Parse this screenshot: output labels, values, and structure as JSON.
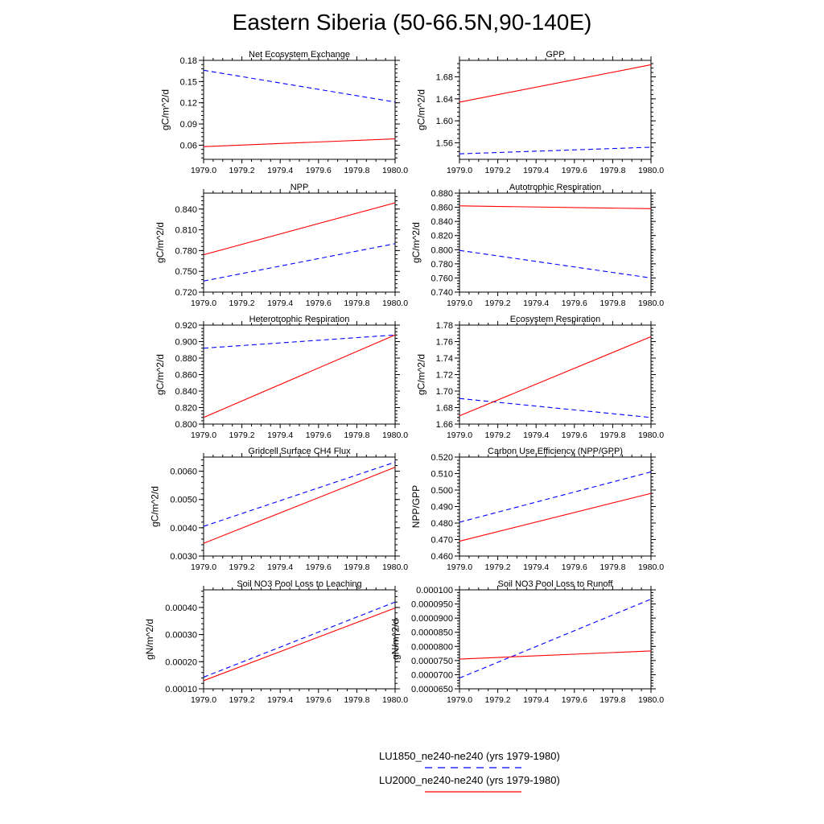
{
  "title": "Eastern Siberia (50-66.5N,90-140E)",
  "legend": [
    {
      "label": "LU1850_ne240-ne240 (yrs 1979-1980)",
      "color": "#0000ff",
      "dash": "dashed"
    },
    {
      "label": "LU2000_ne240-ne240 (yrs 1979-1980)",
      "color": "#ff0000",
      "dash": "solid"
    }
  ],
  "chart_data": [
    {
      "type": "line",
      "title": "Net Ecosystem Exchange",
      "ylabel": "gC/m^2/d",
      "xlim": [
        1979.0,
        1980.0
      ],
      "ylim": [
        0.04,
        0.18
      ],
      "xticks": [
        "1979.0",
        "1979.2",
        "1979.4",
        "1979.6",
        "1979.8",
        "1980.0"
      ],
      "yticks": [
        "0.06",
        "0.09",
        "0.12",
        "0.15",
        "0.18"
      ],
      "series": [
        {
          "x": [
            1979.0,
            1980.0
          ],
          "values": [
            0.166,
            0.121
          ]
        },
        {
          "x": [
            1979.0,
            1980.0
          ],
          "values": [
            0.058,
            0.069
          ]
        }
      ]
    },
    {
      "type": "line",
      "title": "GPP",
      "ylabel": "gC/m^2/d",
      "xlim": [
        1979.0,
        1980.0
      ],
      "ylim": [
        1.53,
        1.71
      ],
      "xticks": [
        "1979.0",
        "1979.2",
        "1979.4",
        "1979.6",
        "1979.8",
        "1980.0"
      ],
      "yticks": [
        "1.56",
        "1.60",
        "1.64",
        "1.68"
      ],
      "series": [
        {
          "x": [
            1979.0,
            1980.0
          ],
          "values": [
            1.54,
            1.552
          ]
        },
        {
          "x": [
            1979.0,
            1980.0
          ],
          "values": [
            1.634,
            1.702
          ]
        }
      ]
    },
    {
      "type": "line",
      "title": "NPP",
      "ylabel": "gC/m^2/d",
      "xlim": [
        1979.0,
        1980.0
      ],
      "ylim": [
        0.72,
        0.863
      ],
      "xticks": [
        "1979.0",
        "1979.2",
        "1979.4",
        "1979.6",
        "1979.8",
        "1980.0"
      ],
      "yticks": [
        "0.720",
        "0.750",
        "0.780",
        "0.810",
        "0.840"
      ],
      "series": [
        {
          "x": [
            1979.0,
            1980.0
          ],
          "values": [
            0.736,
            0.79
          ]
        },
        {
          "x": [
            1979.0,
            1980.0
          ],
          "values": [
            0.774,
            0.849
          ]
        }
      ]
    },
    {
      "type": "line",
      "title": "Autotrophic Respiration",
      "ylabel": "gC/m^2/d",
      "xlim": [
        1979.0,
        1980.0
      ],
      "ylim": [
        0.74,
        0.88
      ],
      "xticks": [
        "1979.0",
        "1979.2",
        "1979.4",
        "1979.6",
        "1979.8",
        "1980.0"
      ],
      "yticks": [
        "0.740",
        "0.760",
        "0.780",
        "0.800",
        "0.820",
        "0.840",
        "0.860",
        "0.880"
      ],
      "series": [
        {
          "x": [
            1979.0,
            1980.0
          ],
          "values": [
            0.799,
            0.76
          ]
        },
        {
          "x": [
            1979.0,
            1980.0
          ],
          "values": [
            0.862,
            0.858
          ]
        }
      ]
    },
    {
      "type": "line",
      "title": "Heterotrophic Respiration",
      "ylabel": "gC/m^2/d",
      "xlim": [
        1979.0,
        1980.0
      ],
      "ylim": [
        0.8,
        0.92
      ],
      "xticks": [
        "1979.0",
        "1979.2",
        "1979.4",
        "1979.6",
        "1979.8",
        "1980.0"
      ],
      "yticks": [
        "0.800",
        "0.820",
        "0.840",
        "0.860",
        "0.880",
        "0.900",
        "0.920"
      ],
      "series": [
        {
          "x": [
            1979.0,
            1980.0
          ],
          "values": [
            0.892,
            0.908
          ]
        },
        {
          "x": [
            1979.0,
            1980.0
          ],
          "values": [
            0.808,
            0.908
          ]
        }
      ]
    },
    {
      "type": "line",
      "title": "Ecosystem Respiration",
      "ylabel": "gC/m^2/d",
      "xlim": [
        1979.0,
        1980.0
      ],
      "ylim": [
        1.66,
        1.78
      ],
      "xticks": [
        "1979.0",
        "1979.2",
        "1979.4",
        "1979.6",
        "1979.8",
        "1980.0"
      ],
      "yticks": [
        "1.66",
        "1.68",
        "1.70",
        "1.72",
        "1.74",
        "1.76",
        "1.78"
      ],
      "series": [
        {
          "x": [
            1979.0,
            1980.0
          ],
          "values": [
            1.691,
            1.668
          ]
        },
        {
          "x": [
            1979.0,
            1980.0
          ],
          "values": [
            1.67,
            1.766
          ]
        }
      ]
    },
    {
      "type": "line",
      "title": "Gridcell Surface CH4 Flux",
      "ylabel": "gC/m^2/d",
      "xlim": [
        1979.0,
        1980.0
      ],
      "ylim": [
        0.003,
        0.0065
      ],
      "xticks": [
        "1979.0",
        "1979.2",
        "1979.4",
        "1979.6",
        "1979.8",
        "1980.0"
      ],
      "yticks": [
        "0.0030",
        "0.0040",
        "0.0050",
        "0.0060"
      ],
      "series": [
        {
          "x": [
            1979.0,
            1980.0
          ],
          "values": [
            0.00405,
            0.00632
          ]
        },
        {
          "x": [
            1979.0,
            1980.0
          ],
          "values": [
            0.00345,
            0.00614
          ]
        }
      ]
    },
    {
      "type": "line",
      "title": "Carbon Use Efficiency (NPP/GPP)",
      "ylabel": "NPP/GPP",
      "xlim": [
        1979.0,
        1980.0
      ],
      "ylim": [
        0.46,
        0.52
      ],
      "xticks": [
        "1979.0",
        "1979.2",
        "1979.4",
        "1979.6",
        "1979.8",
        "1980.0"
      ],
      "yticks": [
        "0.460",
        "0.470",
        "0.480",
        "0.490",
        "0.500",
        "0.510",
        "0.520"
      ],
      "series": [
        {
          "x": [
            1979.0,
            1980.0
          ],
          "values": [
            0.4805,
            0.511
          ]
        },
        {
          "x": [
            1979.0,
            1980.0
          ],
          "values": [
            0.469,
            0.498
          ]
        }
      ]
    },
    {
      "type": "line",
      "title": "Soil NO3 Pool Loss to Leaching",
      "ylabel": "gN/m^2/d",
      "xlim": [
        1979.0,
        1980.0
      ],
      "ylim": [
        0.0001,
        0.000465
      ],
      "xticks": [
        "1979.0",
        "1979.2",
        "1979.4",
        "1979.6",
        "1979.8",
        "1980.0"
      ],
      "yticks": [
        "0.00010",
        "0.00020",
        "0.00030",
        "0.00040"
      ],
      "series": [
        {
          "x": [
            1979.0,
            1980.0
          ],
          "values": [
            0.000143,
            0.00042
          ]
        },
        {
          "x": [
            1979.0,
            1980.0
          ],
          "values": [
            0.00013,
            0.000398
          ]
        }
      ]
    },
    {
      "type": "line",
      "title": "Soil NO3 Pool Loss to Runoff",
      "ylabel": "gN/m^2/d",
      "xlim": [
        1979.0,
        1980.0
      ],
      "ylim": [
        6.5e-05,
        0.0001
      ],
      "xticks": [
        "1979.0",
        "1979.2",
        "1979.4",
        "1979.6",
        "1979.8",
        "1980.0"
      ],
      "yticks": [
        "0.0000650",
        "0.0000700",
        "0.0000750",
        "0.0000800",
        "0.0000850",
        "0.0000900",
        "0.0000950",
        "0.000100"
      ],
      "series": [
        {
          "x": [
            1979.0,
            1980.0
          ],
          "values": [
            6.88e-05,
            9.67e-05
          ]
        },
        {
          "x": [
            1979.0,
            1980.0
          ],
          "values": [
            7.55e-05,
            7.84e-05
          ]
        }
      ]
    }
  ]
}
